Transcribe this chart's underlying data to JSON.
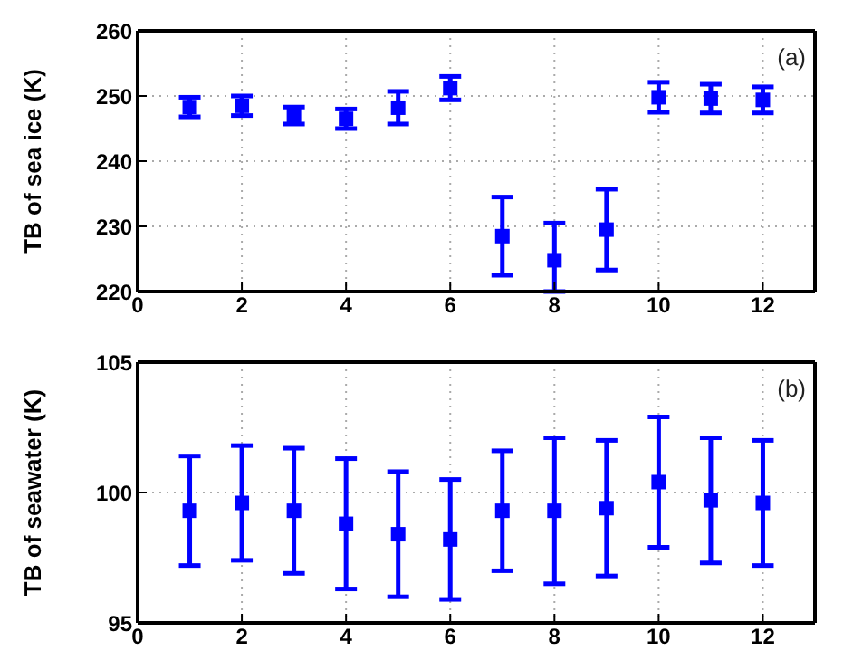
{
  "chart_data": [
    {
      "type": "scatter",
      "ylabel": "TB of sea ice (K)",
      "annotations": [
        "(a)"
      ],
      "x": [
        1,
        2,
        3,
        4,
        5,
        6,
        7,
        8,
        9,
        10,
        11,
        12
      ],
      "series": [
        {
          "color": "#0000ff",
          "values": [
            248.3,
            248.5,
            247.0,
            246.5,
            248.2,
            251.2,
            228.5,
            224.8,
            229.5,
            249.8,
            249.6,
            249.4
          ],
          "errors": [
            1.5,
            1.5,
            1.3,
            1.5,
            2.5,
            1.8,
            6.0,
            [
              220,
              230.5
            ],
            6.2,
            2.3,
            2.2,
            2.0
          ]
        }
      ],
      "xlim": [
        0,
        13
      ],
      "xticks": [
        0,
        2,
        4,
        6,
        8,
        10,
        12
      ],
      "ylim": [
        220,
        260
      ],
      "yticks": [
        220,
        230,
        240,
        250,
        260
      ],
      "grid": true,
      "marker": "square",
      "legend": false
    },
    {
      "type": "scatter",
      "ylabel": "TB of seawater (K)",
      "annotations": [
        "(b)"
      ],
      "x": [
        1,
        2,
        3,
        4,
        5,
        6,
        7,
        8,
        9,
        10,
        11,
        12
      ],
      "series": [
        {
          "color": "#0000ff",
          "values": [
            99.3,
            99.6,
            99.3,
            98.8,
            98.4,
            98.2,
            99.3,
            99.3,
            99.4,
            100.4,
            99.7,
            99.6
          ],
          "errors": [
            2.1,
            2.2,
            2.4,
            2.5,
            2.4,
            2.3,
            2.3,
            2.8,
            2.6,
            2.5,
            2.4,
            2.4
          ]
        }
      ],
      "xlim": [
        0,
        13
      ],
      "xticks": [
        0,
        2,
        4,
        6,
        8,
        10,
        12
      ],
      "ylim": [
        95,
        105
      ],
      "yticks": [
        95,
        100,
        105
      ],
      "grid": true,
      "marker": "square",
      "legend": false
    }
  ]
}
